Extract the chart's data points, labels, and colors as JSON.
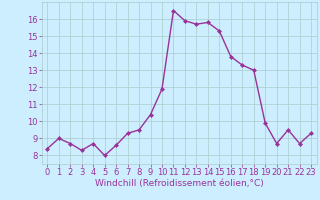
{
  "x": [
    0,
    1,
    2,
    3,
    4,
    5,
    6,
    7,
    8,
    9,
    10,
    11,
    12,
    13,
    14,
    15,
    16,
    17,
    18,
    19,
    20,
    21,
    22,
    23
  ],
  "y": [
    8.4,
    9.0,
    8.7,
    8.3,
    8.7,
    8.0,
    8.6,
    9.3,
    9.5,
    10.4,
    11.9,
    16.5,
    15.9,
    15.7,
    15.8,
    15.3,
    13.8,
    13.3,
    13.0,
    9.9,
    8.7,
    9.5,
    8.7,
    9.3
  ],
  "line_color": "#993399",
  "marker": "D",
  "marker_size": 2.0,
  "linewidth": 1.0,
  "xlabel": "Windchill (Refroidissement éolien,°C)",
  "xlabel_fontsize": 6.5,
  "ylim": [
    7.5,
    17.0
  ],
  "xlim": [
    -0.5,
    23.5
  ],
  "yticks": [
    8,
    9,
    10,
    11,
    12,
    13,
    14,
    15,
    16
  ],
  "xticks": [
    0,
    1,
    2,
    3,
    4,
    5,
    6,
    7,
    8,
    9,
    10,
    11,
    12,
    13,
    14,
    15,
    16,
    17,
    18,
    19,
    20,
    21,
    22,
    23
  ],
  "background_color": "#cceeff",
  "grid_color": "#aacccc",
  "tick_color": "#993399",
  "tick_fontsize": 6.0,
  "tick_label_color": "#993399"
}
